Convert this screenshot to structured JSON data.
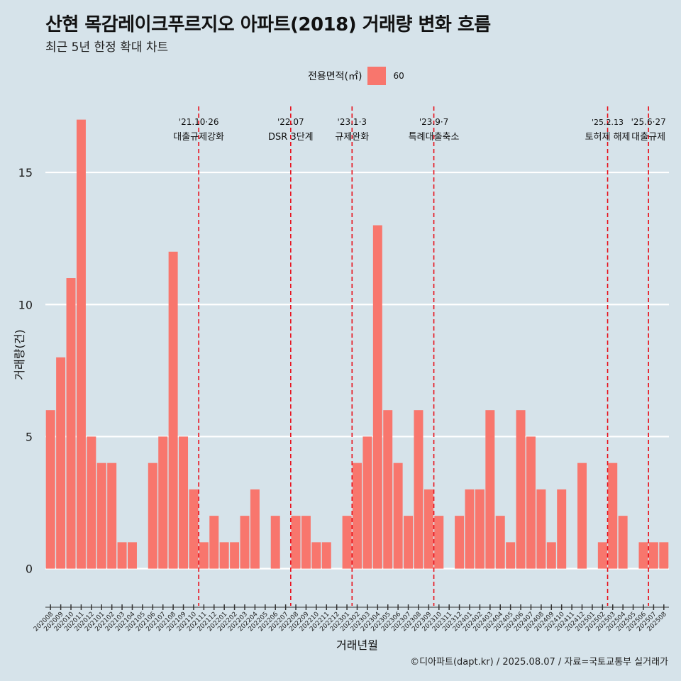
{
  "title": "산현 목감레이크푸르지오 아파트(2018) 거래량 변화 흐름",
  "subtitle": "최근 5년 한정 확대 차트",
  "legend": {
    "title": "전용면적(㎡)",
    "entry": "60",
    "color": "#f8766d"
  },
  "caption": "©디아파트(dapt.kr) / 2025.08.07 / 자료=국토교통부 실거래가",
  "chart_data": {
    "type": "bar",
    "xlabel": "거래년월",
    "ylabel": "거래량(건)",
    "ylim": [
      -1.3,
      17.5
    ],
    "yticks": [
      0,
      5,
      10,
      15
    ],
    "grid": "horizontal",
    "bar_color": "#f8766d",
    "categories": [
      "202008",
      "202009",
      "202010",
      "202011",
      "202012",
      "202101",
      "202102",
      "202103",
      "202104",
      "202105",
      "202106",
      "202107",
      "202108",
      "202109",
      "202110",
      "202111",
      "202112",
      "202201",
      "202202",
      "202203",
      "202204",
      "202205",
      "202206",
      "202207",
      "202208",
      "202209",
      "202210",
      "202211",
      "202212",
      "202301",
      "202302",
      "202303",
      "202304",
      "202305",
      "202306",
      "202307",
      "202308",
      "202309",
      "202310",
      "202311",
      "202312",
      "202401",
      "202402",
      "202403",
      "202404",
      "202405",
      "202406",
      "202407",
      "202408",
      "202409",
      "202410",
      "202411",
      "202412",
      "202501",
      "202502",
      "202503",
      "202504",
      "202505",
      "202506",
      "202507",
      "202508"
    ],
    "values": [
      6,
      8,
      11,
      17,
      5,
      4,
      4,
      1,
      1,
      0,
      4,
      5,
      12,
      5,
      3,
      1,
      2,
      1,
      1,
      2,
      3,
      0,
      2,
      0,
      2,
      2,
      1,
      1,
      0,
      2,
      4,
      5,
      13,
      6,
      4,
      2,
      6,
      3,
      2,
      0,
      2,
      3,
      3,
      6,
      2,
      1,
      6,
      5,
      3,
      1,
      3,
      0,
      4,
      0,
      1,
      4,
      2,
      0,
      1,
      1,
      1
    ],
    "events": [
      {
        "after": "202110",
        "date": "'21.10·26",
        "label": "대출규제강화"
      },
      {
        "after": "202207",
        "date": "'22.07",
        "label": "DSR 3단계"
      },
      {
        "after": "202301",
        "date": "'23.1·3",
        "label": "규제완화"
      },
      {
        "after": "202309",
        "date": "'23.9·7",
        "label": "특례대출축소"
      },
      {
        "after": "202502",
        "date": "'25.2.13",
        "label": "토허제 해제"
      },
      {
        "after": "202506",
        "date": "'25.6·27",
        "label": "대출규제"
      }
    ]
  }
}
